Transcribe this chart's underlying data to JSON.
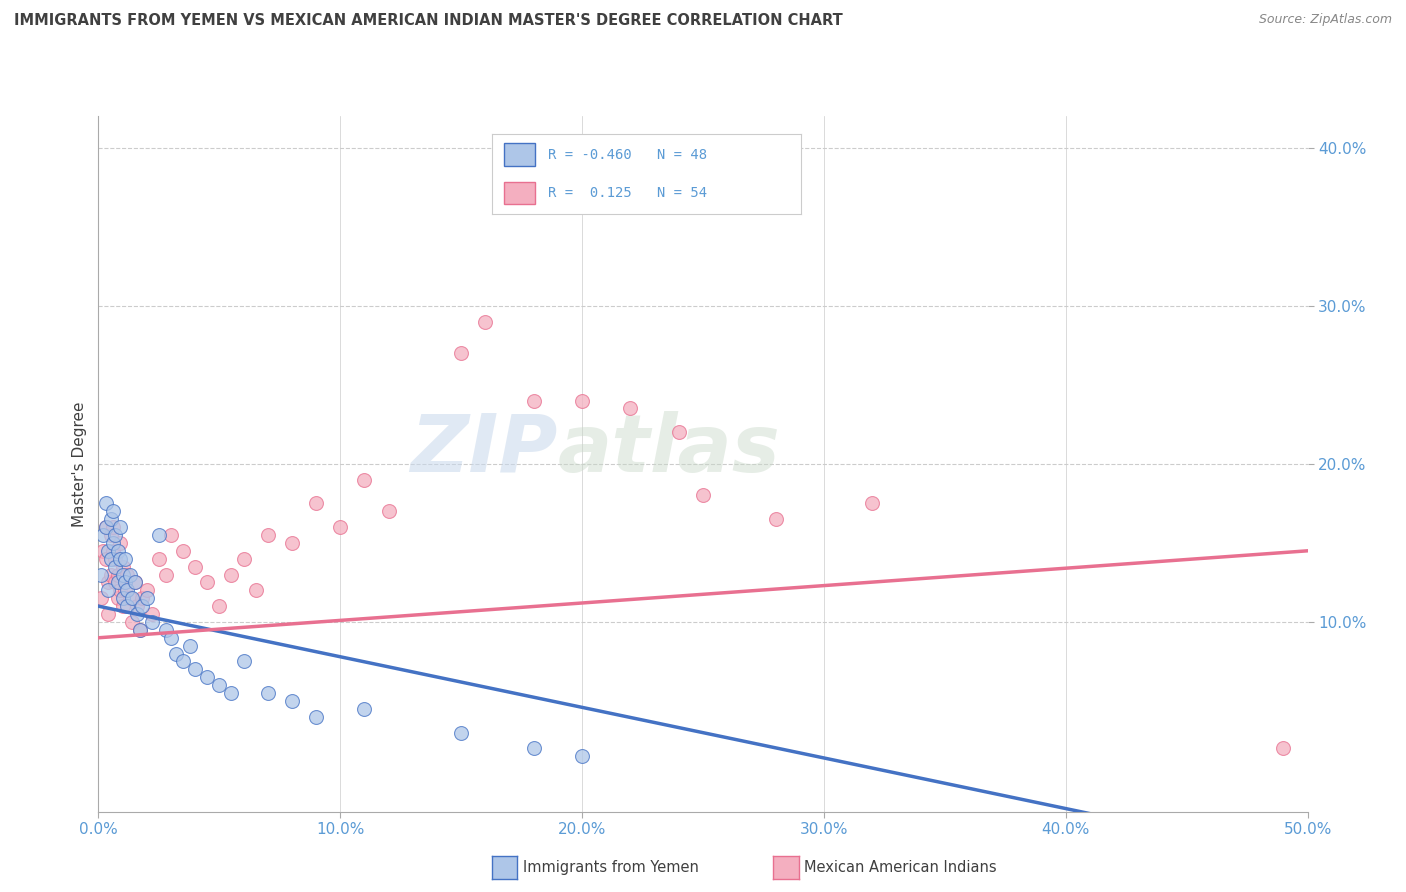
{
  "title": "IMMIGRANTS FROM YEMEN VS MEXICAN AMERICAN INDIAN MASTER'S DEGREE CORRELATION CHART",
  "source": "Source: ZipAtlas.com",
  "ylabel": "Master's Degree",
  "color_blue": "#aec6e8",
  "color_pink": "#f4afc0",
  "line_blue": "#4472c4",
  "line_pink": "#e87090",
  "title_color": "#404040",
  "axis_label_color": "#5b9bd5",
  "watermark_zip": "ZIP",
  "watermark_atlas": "atlas",
  "blue_scatter_x": [
    0.001,
    0.002,
    0.003,
    0.003,
    0.004,
    0.004,
    0.005,
    0.005,
    0.006,
    0.006,
    0.007,
    0.007,
    0.008,
    0.008,
    0.009,
    0.009,
    0.01,
    0.01,
    0.011,
    0.011,
    0.012,
    0.012,
    0.013,
    0.014,
    0.015,
    0.016,
    0.017,
    0.018,
    0.02,
    0.022,
    0.025,
    0.028,
    0.03,
    0.032,
    0.035,
    0.038,
    0.04,
    0.045,
    0.05,
    0.055,
    0.06,
    0.07,
    0.08,
    0.09,
    0.11,
    0.15,
    0.18,
    0.2
  ],
  "blue_scatter_y": [
    0.13,
    0.155,
    0.175,
    0.16,
    0.145,
    0.12,
    0.165,
    0.14,
    0.15,
    0.17,
    0.135,
    0.155,
    0.125,
    0.145,
    0.16,
    0.14,
    0.13,
    0.115,
    0.125,
    0.14,
    0.12,
    0.11,
    0.13,
    0.115,
    0.125,
    0.105,
    0.095,
    0.11,
    0.115,
    0.1,
    0.155,
    0.095,
    0.09,
    0.08,
    0.075,
    0.085,
    0.07,
    0.065,
    0.06,
    0.055,
    0.075,
    0.055,
    0.05,
    0.04,
    0.045,
    0.03,
    0.02,
    0.015
  ],
  "pink_scatter_x": [
    0.001,
    0.002,
    0.003,
    0.003,
    0.004,
    0.004,
    0.005,
    0.005,
    0.006,
    0.006,
    0.007,
    0.007,
    0.008,
    0.008,
    0.009,
    0.009,
    0.01,
    0.01,
    0.011,
    0.012,
    0.013,
    0.014,
    0.015,
    0.016,
    0.017,
    0.018,
    0.02,
    0.022,
    0.025,
    0.028,
    0.03,
    0.035,
    0.04,
    0.045,
    0.05,
    0.055,
    0.06,
    0.065,
    0.07,
    0.08,
    0.09,
    0.1,
    0.11,
    0.12,
    0.15,
    0.16,
    0.18,
    0.2,
    0.22,
    0.24,
    0.25,
    0.28,
    0.32,
    0.49
  ],
  "pink_scatter_y": [
    0.115,
    0.145,
    0.16,
    0.14,
    0.125,
    0.105,
    0.155,
    0.13,
    0.145,
    0.16,
    0.125,
    0.14,
    0.115,
    0.13,
    0.15,
    0.12,
    0.135,
    0.11,
    0.12,
    0.13,
    0.115,
    0.1,
    0.125,
    0.11,
    0.095,
    0.115,
    0.12,
    0.105,
    0.14,
    0.13,
    0.155,
    0.145,
    0.135,
    0.125,
    0.11,
    0.13,
    0.14,
    0.12,
    0.155,
    0.15,
    0.175,
    0.16,
    0.19,
    0.17,
    0.27,
    0.29,
    0.24,
    0.24,
    0.235,
    0.22,
    0.18,
    0.165,
    0.175,
    0.02
  ],
  "blue_line_x": [
    0.0,
    0.5
  ],
  "blue_line_y": [
    0.11,
    -0.05
  ],
  "pink_line_x": [
    0.0,
    0.5
  ],
  "pink_line_y": [
    0.09,
    0.145
  ],
  "xlim": [
    0.0,
    0.5
  ],
  "ylim": [
    -0.02,
    0.42
  ],
  "xticks": [
    0.0,
    0.1,
    0.2,
    0.3,
    0.4,
    0.5
  ],
  "yticks": [
    0.1,
    0.2,
    0.3,
    0.4
  ],
  "xtick_labels": [
    "0.0%",
    "10.0%",
    "20.0%",
    "30.0%",
    "40.0%",
    "50.0%"
  ],
  "ytick_labels": [
    "10.0%",
    "20.0%",
    "30.0%",
    "40.0%"
  ]
}
